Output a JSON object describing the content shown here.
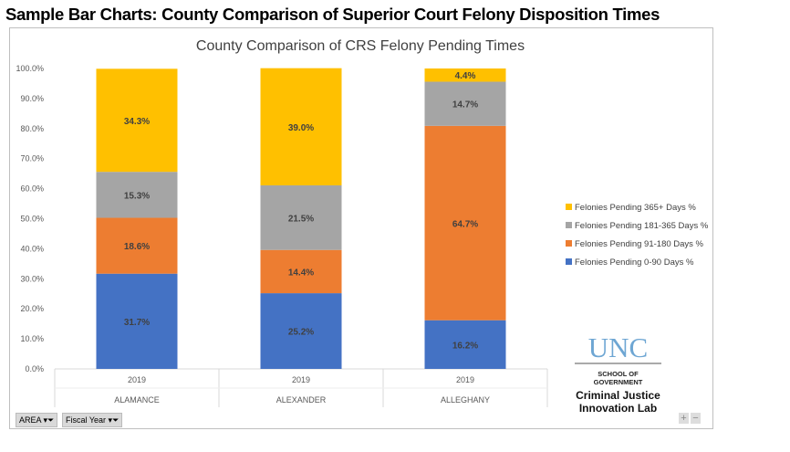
{
  "page_title": "Sample Bar Charts: County Comparison of Superior Court Felony Disposition Times",
  "controls": {
    "area": "AREA",
    "fiscal_year": "Fiscal Year",
    "zoom_in": "+",
    "zoom_out": "−"
  },
  "logo": {
    "unc": "UNC",
    "school": "SCHOOL OF",
    "government": "GOVERNMENT",
    "lab1": "Criminal Justice",
    "lab2": "Innovation Lab"
  },
  "chart_data": {
    "type": "bar",
    "stacked": true,
    "title": "County Comparison of CRS Felony Pending Times",
    "categories": [
      "ALAMANCE",
      "ALEXANDER",
      "ALLEGHANY"
    ],
    "sub_categories": [
      "2019",
      "2019",
      "2019"
    ],
    "ylim": [
      0,
      100
    ],
    "yticks": [
      "0.0%",
      "10.0%",
      "20.0%",
      "30.0%",
      "40.0%",
      "50.0%",
      "60.0%",
      "70.0%",
      "80.0%",
      "90.0%",
      "100.0%"
    ],
    "legend_position": "right",
    "series": [
      {
        "name": "Felonies Pending 0-90 Days %",
        "color": "#4472c4",
        "values": [
          31.7,
          25.2,
          16.2
        ]
      },
      {
        "name": "Felonies Pending 91-180 Days %",
        "color": "#ed7d31",
        "values": [
          18.6,
          14.4,
          64.7
        ]
      },
      {
        "name": "Felonies Pending 181-365 Days %",
        "color": "#a5a5a5",
        "values": [
          15.3,
          21.5,
          14.7
        ]
      },
      {
        "name": "Felonies Pending 365+ Days %",
        "color": "#ffc000",
        "values": [
          34.3,
          39.0,
          4.4
        ]
      }
    ]
  }
}
